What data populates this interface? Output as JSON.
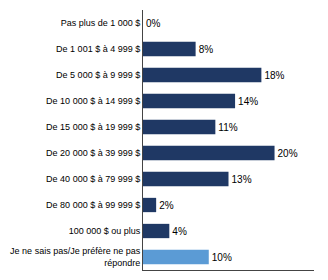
{
  "chart_data": {
    "type": "bar",
    "orientation": "horizontal",
    "categories": [
      "Pas plus de 1 000 $",
      "De 1 001 $ à 4 999 $",
      "De 5 000 $ à 9 999 $",
      "De 10 000 $ à 14 999 $",
      "De 15 000 $ à 19 999 $",
      "De 20 000 $ à 39 999 $",
      "De 40 000 $ à 79 999 $",
      "De 80 000 $ à 99 999 $",
      "100 000 $ ou plus",
      "Je ne sais pas/Je préfère ne pas\nrépondre"
    ],
    "values": [
      0,
      8,
      18,
      14,
      11,
      20,
      13,
      2,
      4,
      10
    ],
    "value_labels": [
      "0%",
      "8%",
      "18%",
      "14%",
      "11%",
      "20%",
      "13%",
      "2%",
      "4%",
      "10%"
    ],
    "colors": [
      "#1F3864",
      "#1F3864",
      "#1F3864",
      "#1F3864",
      "#1F3864",
      "#1F3864",
      "#1F3864",
      "#1F3864",
      "#1F3864",
      "#5B9BD5"
    ],
    "xlim": [
      0,
      26
    ],
    "data_labels": true,
    "tick_labels": "y",
    "grid": false
  }
}
